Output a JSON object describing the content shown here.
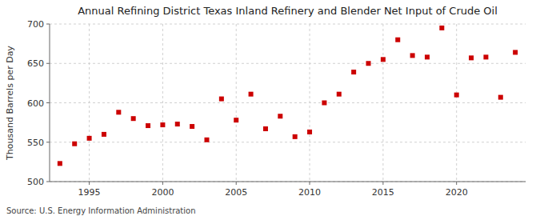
{
  "chart_data": {
    "type": "scatter",
    "title": "Annual Refining District Texas Inland Refinery and Blender Net Input of Crude Oil",
    "ylabel": "Thousand Barrels per Day",
    "annotations": [
      "Source: U.S. Energy Information Administration"
    ],
    "x": [
      1993,
      1994,
      1995,
      1996,
      1997,
      1998,
      1999,
      2000,
      2001,
      2002,
      2003,
      2004,
      2005,
      2006,
      2007,
      2008,
      2009,
      2010,
      2011,
      2012,
      2013,
      2014,
      2015,
      2016,
      2017,
      2018,
      2019,
      2020,
      2021,
      2022,
      2023,
      2024
    ],
    "values": [
      523,
      548,
      555,
      560,
      588,
      580,
      571,
      572,
      573,
      570,
      553,
      605,
      578,
      611,
      567,
      583,
      557,
      563,
      600,
      611,
      639,
      650,
      655,
      680,
      660,
      658,
      695,
      610,
      657,
      658,
      607,
      664
    ],
    "color": "#cc0000",
    "marker": "square",
    "xlim": [
      1992.3,
      2024.7
    ],
    "xticks": [
      1995,
      2000,
      2005,
      2010,
      2015,
      2020
    ],
    "ylim": [
      500,
      700
    ],
    "yticks": [
      500,
      550,
      600,
      650,
      700
    ],
    "grid": true
  }
}
